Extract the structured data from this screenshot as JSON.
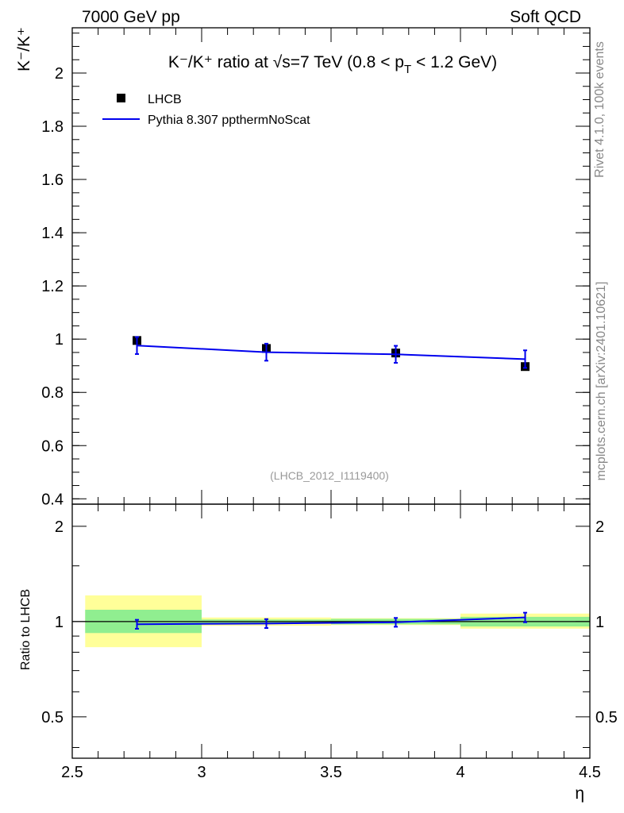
{
  "header": {
    "left": "7000 GeV pp",
    "right": "Soft QCD"
  },
  "side_labels": {
    "rivet": "Rivet 4.1.0,  100k events",
    "mcplots": "mcplots.cern.ch [arXiv:2401.10621]"
  },
  "watermark": "(LHCB_2012_I1119400)",
  "title": {
    "main": "K⁻/K⁺ ratio at √s=7 TeV (0.8 < p",
    "sub": "T",
    "tail": " < 1.2 GeV)"
  },
  "ylabel_main": "K⁻/K⁺",
  "ylabel_ratio": "Ratio to LHCB",
  "xlabel": "η",
  "legend": [
    {
      "label": "LHCB",
      "kind": "marker"
    },
    {
      "label": "Pythia 8.307 ppthermNoScat",
      "kind": "line"
    }
  ],
  "colors": {
    "data": "#000000",
    "mc": "#0000ee",
    "band_inner": "#90ee90",
    "band_outer": "#ffff99",
    "axis": "#000000",
    "muted": "#888888"
  },
  "chart_data": [
    {
      "type": "scatter",
      "panel": "main",
      "xlim": [
        2.5,
        4.5
      ],
      "ylim": [
        0.38,
        2.17
      ],
      "x_ticks": [
        2.5,
        3,
        3.5,
        4,
        4.5
      ],
      "y_ticks": [
        "0.4",
        "0.6",
        "0.8",
        "1",
        "1.2",
        "1.4",
        "1.6",
        "1.8",
        "2"
      ],
      "series": [
        {
          "name": "LHCB",
          "x": [
            2.75,
            3.25,
            3.75,
            4.25
          ],
          "y": [
            0.995,
            0.965,
            0.948,
            0.897
          ]
        },
        {
          "name": "Pythia 8.307 ppthermNoScat",
          "x": [
            2.75,
            3.25,
            3.75,
            4.25
          ],
          "y": [
            0.976,
            0.951,
            0.943,
            0.925
          ],
          "err": [
            0.032,
            0.032,
            0.032,
            0.033
          ]
        }
      ]
    },
    {
      "type": "scatter",
      "panel": "ratio",
      "yscale": "log",
      "xlim": [
        2.5,
        4.5
      ],
      "ylim": [
        0.37,
        2.35
      ],
      "y_ticks": [
        "0.5",
        "1",
        "2"
      ],
      "bins": [
        [
          2.55,
          3.0
        ],
        [
          3.0,
          3.5
        ],
        [
          3.5,
          4.0
        ],
        [
          4.0,
          4.5
        ]
      ],
      "data_band_inner": [
        [
          0.92,
          1.09
        ],
        [
          0.985,
          1.015
        ],
        [
          0.98,
          1.02
        ],
        [
          0.965,
          1.035
        ]
      ],
      "data_band_outer": [
        [
          0.83,
          1.21
        ],
        [
          0.97,
          1.03
        ],
        [
          0.975,
          1.025
        ],
        [
          0.95,
          1.06
        ]
      ],
      "series": [
        {
          "name": "Pythia 8.307 ppthermNoScat / LHCB",
          "x": [
            2.75,
            3.25,
            3.75,
            4.25
          ],
          "y": [
            0.981,
            0.986,
            0.995,
            1.031
          ],
          "err": [
            0.032,
            0.032,
            0.032,
            0.036
          ]
        }
      ]
    }
  ]
}
